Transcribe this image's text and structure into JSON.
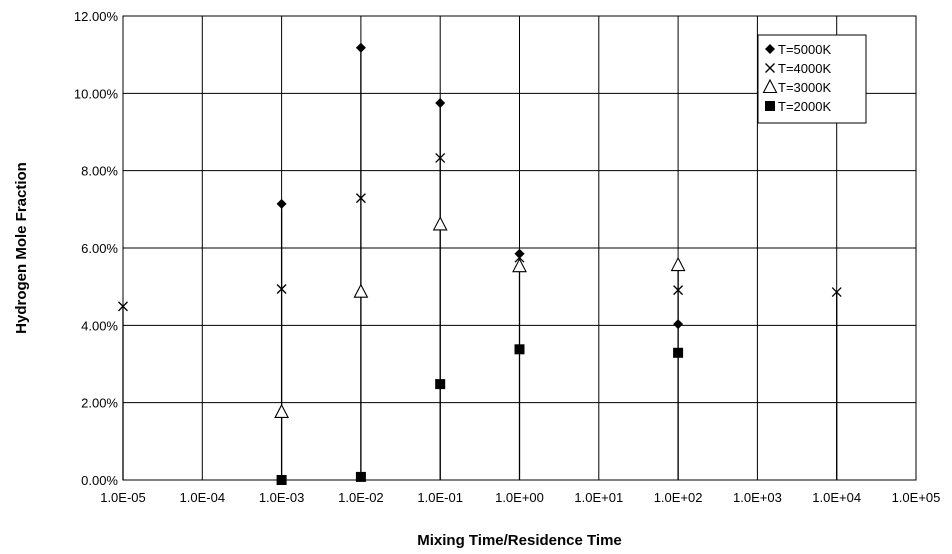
{
  "chart_data": {
    "type": "scatter",
    "title": "",
    "xlabel": "Mixing Time/Residence Time",
    "ylabel": "Hydrogen Mole Fraction",
    "x_scale": "log",
    "xlim": [
      1e-05,
      100000.0
    ],
    "ylim": [
      0,
      0.12
    ],
    "x_tick_values": [
      1e-05,
      0.0001,
      0.001,
      0.01,
      0.1,
      1.0,
      10.0,
      100.0,
      1000.0,
      10000.0,
      100000.0
    ],
    "x_tick_labels": [
      "1.0E-05",
      "1.0E-04",
      "1.0E-03",
      "1.0E-02",
      "1.0E-01",
      "1.0E+00",
      "1.0E+01",
      "1.0E+02",
      "1.0E+03",
      "1.0E+04",
      "1.0E+05"
    ],
    "y_tick_values": [
      0,
      0.02,
      0.04,
      0.06,
      0.08,
      0.1,
      0.12
    ],
    "y_tick_labels": [
      "0.00%",
      "2.00%",
      "4.00%",
      "6.00%",
      "8.00%",
      "10.00%",
      "12.00%"
    ],
    "grid": true,
    "legend_position": "top-right",
    "series": [
      {
        "name": "T=5000K",
        "marker": "diamond",
        "color": "#000000",
        "x": [
          0.001,
          0.01,
          0.1,
          1.0,
          100.0
        ],
        "y": [
          0.0714,
          0.1118,
          0.0975,
          0.0585,
          0.0403
        ]
      },
      {
        "name": "T=4000K",
        "marker": "star",
        "color": "#000000",
        "x": [
          1e-05,
          0.001,
          0.01,
          0.1,
          1.0,
          100.0,
          10000.0
        ],
        "y": [
          0.0449,
          0.0494,
          0.0729,
          0.0833,
          0.0575,
          0.0491,
          0.0486
        ]
      },
      {
        "name": "T=3000K",
        "marker": "triangle",
        "color": "#000000",
        "x": [
          0.001,
          0.01,
          0.1,
          1.0,
          100.0
        ],
        "y": [
          0.0176,
          0.0487,
          0.0661,
          0.0553,
          0.0556
        ]
      },
      {
        "name": "T=2000K",
        "marker": "square",
        "color": "#000000",
        "x": [
          0.001,
          0.01,
          0.1,
          1.0,
          100.0
        ],
        "y": [
          0.0,
          0.0008,
          0.0248,
          0.0338,
          0.0329
        ]
      }
    ]
  }
}
